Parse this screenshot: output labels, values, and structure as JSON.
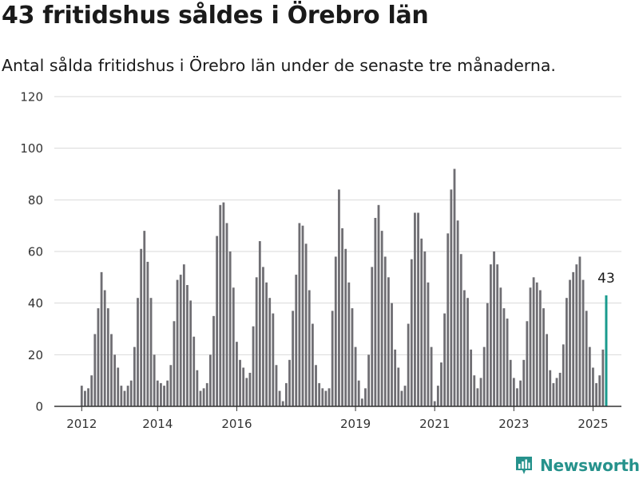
{
  "header": {
    "title": "43 fritidshus såldes i Örebro län",
    "subtitle": "Antal sålda fritidshus i Örebro län under de senaste tre månaderna."
  },
  "brand": {
    "name": "Newsworthy",
    "icon": "bar-chart-logo-icon"
  },
  "colors": {
    "bar": "#6f6e73",
    "highlight": "#1a9b8e",
    "grid": "#d9d9d9",
    "axis": "#333333",
    "brand": "#26928c"
  },
  "chart_data": {
    "type": "bar",
    "title": "43 fritidshus såldes i Örebro län",
    "subtitle": "Antal sålda fritidshus i Örebro län under de senaste tre månaderna.",
    "ylim": [
      0,
      120
    ],
    "yticks": [
      0,
      20,
      40,
      60,
      80,
      100,
      120
    ],
    "xticks": [
      "2012",
      "2014",
      "2016",
      "2019",
      "2021",
      "2023",
      "2025"
    ],
    "grid": true,
    "legend": "none",
    "series": [
      {
        "values": [
          8,
          6,
          7,
          12,
          28,
          38,
          52,
          45,
          38,
          28,
          20,
          15,
          8,
          6,
          8,
          10,
          23,
          42,
          61,
          68,
          56,
          42,
          20,
          10,
          9,
          8,
          10,
          16,
          33,
          49,
          51,
          55,
          47,
          41,
          27,
          14,
          6,
          7,
          9,
          20,
          35,
          66,
          78,
          79,
          71,
          60,
          46,
          25,
          18,
          15,
          11,
          13,
          31,
          50,
          64,
          54,
          48,
          42,
          36,
          16,
          6,
          2,
          9,
          18,
          37,
          51,
          71,
          70,
          63,
          45,
          32,
          16,
          9,
          7,
          6,
          7,
          37,
          58,
          84,
          69,
          61,
          48,
          38,
          23,
          10,
          3,
          7,
          20,
          54,
          73,
          78,
          68,
          58,
          50,
          40,
          22,
          15,
          6,
          8,
          32,
          57,
          75,
          75,
          65,
          60,
          48,
          23,
          2,
          8,
          17,
          36,
          67,
          84,
          92,
          72,
          59,
          45,
          42,
          22,
          12,
          7,
          11,
          23,
          40,
          55,
          60,
          55,
          46,
          38,
          34,
          18,
          11,
          7,
          10,
          18,
          33,
          46,
          50,
          48,
          45,
          38,
          28,
          14,
          9,
          11,
          13,
          24,
          42,
          49,
          52,
          55,
          58,
          49,
          37,
          23,
          15,
          9,
          12,
          22,
          43
        ],
        "highlight_last": true,
        "last_label": "43"
      }
    ]
  }
}
